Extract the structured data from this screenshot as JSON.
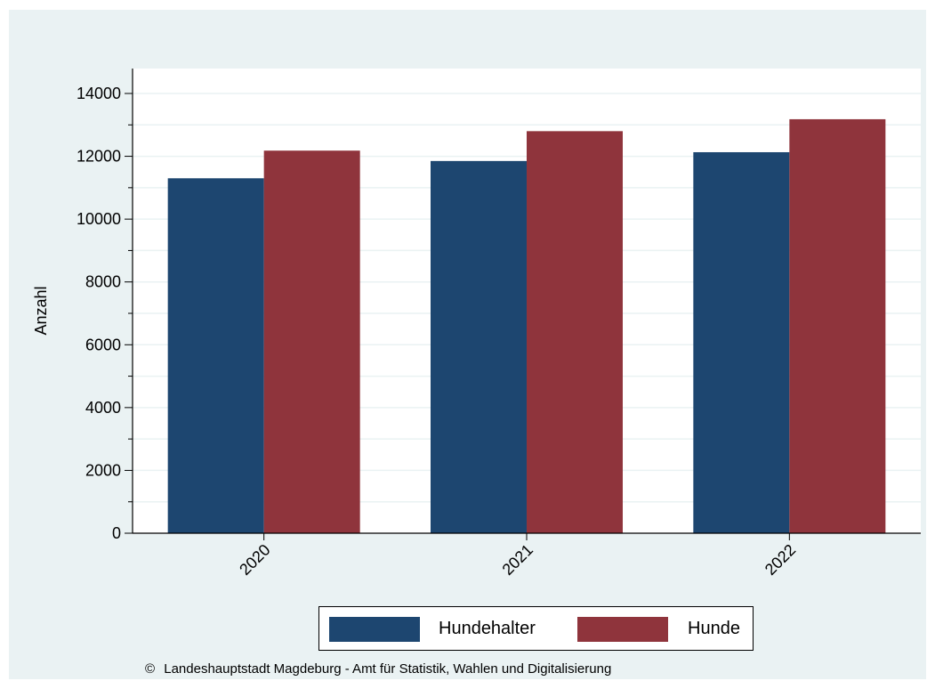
{
  "chart_data": {
    "type": "bar",
    "categories": [
      "2020",
      "2021",
      "2022"
    ],
    "series": [
      {
        "name": "Hundehalter",
        "color": "#1d4670",
        "values": [
          11300,
          11850,
          12130
        ]
      },
      {
        "name": "Hunde",
        "color": "#8f343c",
        "values": [
          12180,
          12800,
          13180
        ]
      }
    ],
    "ylabel": "Anzahl",
    "ylim": [
      0,
      14000
    ],
    "yticks": [
      0,
      2000,
      4000,
      6000,
      8000,
      10000,
      12000,
      14000
    ],
    "grid": true,
    "legend_position": "bottom"
  },
  "background_color": "#eaf2f3",
  "footer": {
    "copyright_symbol": "©",
    "text": "Landeshauptstadt Magdeburg - Amt für Statistik, Wahlen und Digitalisierung"
  }
}
